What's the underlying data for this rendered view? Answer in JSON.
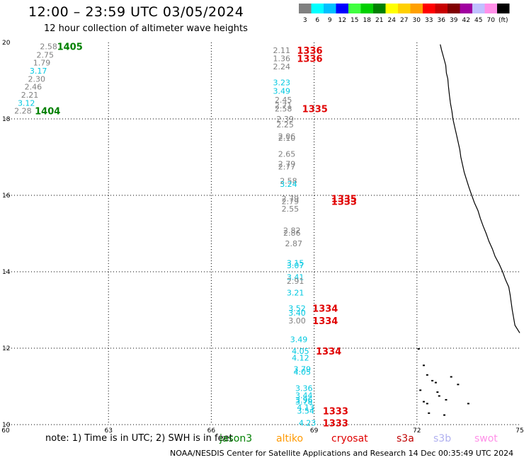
{
  "title": "12:00 – 23:59 UTC 03/05/2024",
  "subtitle": "12 hour collection of altimeter wave heights",
  "colorbar": {
    "colors": [
      "#808080",
      "#00ffff",
      "#00c0ff",
      "#0000ff",
      "#40ff40",
      "#00d000",
      "#008000",
      "#ffff00",
      "#ffd000",
      "#ffa000",
      "#ff0000",
      "#c80000",
      "#800000",
      "#a000a0",
      "#c0c0ff",
      "#ff90e8",
      "#000000"
    ],
    "labels": [
      "3",
      "6",
      "9",
      "12",
      "15",
      "18",
      "21",
      "24",
      "27",
      "30",
      "33",
      "36",
      "39",
      "42",
      "45",
      "70",
      "(ft)"
    ]
  },
  "map": {
    "lon_range": [
      60,
      75
    ],
    "lat_range": [
      10,
      20
    ],
    "lon_ticks": [
      "60",
      "63",
      "66",
      "69",
      "72",
      "75"
    ],
    "lat_ticks": [
      "20",
      "18",
      "16",
      "14",
      "12",
      "10"
    ]
  },
  "observations": [
    {
      "v": "2.58",
      "lon": 61.0,
      "lat": 19.9,
      "c": "#808080"
    },
    {
      "v": "2.75",
      "lon": 60.9,
      "lat": 19.68,
      "c": "#808080"
    },
    {
      "v": "1.79",
      "lon": 60.8,
      "lat": 19.47,
      "c": "#808080"
    },
    {
      "v": "3.17",
      "lon": 60.7,
      "lat": 19.26,
      "c": "#00c8e0"
    },
    {
      "v": "2.30",
      "lon": 60.65,
      "lat": 19.05,
      "c": "#808080"
    },
    {
      "v": "2.46",
      "lon": 60.55,
      "lat": 18.84,
      "c": "#808080"
    },
    {
      "v": "2.21",
      "lon": 60.45,
      "lat": 18.63,
      "c": "#808080"
    },
    {
      "v": "3.12",
      "lon": 60.35,
      "lat": 18.42,
      "c": "#00c8e0"
    },
    {
      "v": "2.28",
      "lon": 60.25,
      "lat": 18.21,
      "c": "#808080"
    },
    {
      "v": "2.11",
      "lon": 67.8,
      "lat": 19.8,
      "c": "#808080"
    },
    {
      "v": "1.36",
      "lon": 67.8,
      "lat": 19.58,
      "c": "#808080"
    },
    {
      "v": "2.24",
      "lon": 67.8,
      "lat": 19.37,
      "c": "#808080"
    },
    {
      "v": "3.23",
      "lon": 67.8,
      "lat": 18.95,
      "c": "#00c8e0"
    },
    {
      "v": "3.49",
      "lon": 67.8,
      "lat": 18.73,
      "c": "#00c8e0"
    },
    {
      "v": "2.45",
      "lon": 67.85,
      "lat": 18.5,
      "c": "#808080"
    },
    {
      "v": "2.71",
      "lon": 67.85,
      "lat": 18.35,
      "c": "#808080"
    },
    {
      "v": "2.58",
      "lon": 67.85,
      "lat": 18.27,
      "c": "#808080"
    },
    {
      "v": "2.39",
      "lon": 67.9,
      "lat": 18.0,
      "c": "#808080"
    },
    {
      "v": "2.25",
      "lon": 67.9,
      "lat": 17.85,
      "c": "#808080"
    },
    {
      "v": "2.06",
      "lon": 67.95,
      "lat": 17.55,
      "c": "#808080"
    },
    {
      "v": "2.10",
      "lon": 67.95,
      "lat": 17.5,
      "c": "#808080"
    },
    {
      "v": "2.65",
      "lon": 67.95,
      "lat": 17.08,
      "c": "#808080"
    },
    {
      "v": "2.79",
      "lon": 67.95,
      "lat": 16.82,
      "c": "#808080"
    },
    {
      "v": "2.77",
      "lon": 67.95,
      "lat": 16.75,
      "c": "#808080"
    },
    {
      "v": "2.58",
      "lon": 68.0,
      "lat": 16.38,
      "c": "#808080"
    },
    {
      "v": "3.24",
      "lon": 68.0,
      "lat": 16.3,
      "c": "#00c8e0"
    },
    {
      "v": "2.79",
      "lon": 68.05,
      "lat": 15.92,
      "c": "#808080"
    },
    {
      "v": "2.79",
      "lon": 68.05,
      "lat": 15.84,
      "c": "#808080"
    },
    {
      "v": "2.55",
      "lon": 68.05,
      "lat": 15.65,
      "c": "#808080"
    },
    {
      "v": "2.82",
      "lon": 68.1,
      "lat": 15.08,
      "c": "#808080"
    },
    {
      "v": "2.86",
      "lon": 68.1,
      "lat": 15.02,
      "c": "#808080"
    },
    {
      "v": "2.87",
      "lon": 68.15,
      "lat": 14.74,
      "c": "#808080"
    },
    {
      "v": "3.15",
      "lon": 68.2,
      "lat": 14.23,
      "c": "#00c8e0"
    },
    {
      "v": "3.07",
      "lon": 68.2,
      "lat": 14.17,
      "c": "#00c8e0"
    },
    {
      "v": "3.41",
      "lon": 68.2,
      "lat": 13.86,
      "c": "#00c8e0"
    },
    {
      "v": "2.91",
      "lon": 68.2,
      "lat": 13.76,
      "c": "#808080"
    },
    {
      "v": "3.21",
      "lon": 68.2,
      "lat": 13.45,
      "c": "#00c8e0"
    },
    {
      "v": "3.52",
      "lon": 68.25,
      "lat": 13.05,
      "c": "#00c8e0"
    },
    {
      "v": "3.40",
      "lon": 68.25,
      "lat": 12.93,
      "c": "#00c8e0"
    },
    {
      "v": "3.00",
      "lon": 68.25,
      "lat": 12.72,
      "c": "#808080"
    },
    {
      "v": "3.49",
      "lon": 68.3,
      "lat": 12.23,
      "c": "#00c8e0"
    },
    {
      "v": "4.05",
      "lon": 68.35,
      "lat": 11.93,
      "c": "#00c8e0"
    },
    {
      "v": "4.12",
      "lon": 68.35,
      "lat": 11.75,
      "c": "#00c8e0"
    },
    {
      "v": "3.79",
      "lon": 68.4,
      "lat": 11.45,
      "c": "#00c8e0"
    },
    {
      "v": "4.05",
      "lon": 68.4,
      "lat": 11.38,
      "c": "#00c8e0"
    },
    {
      "v": "3.36",
      "lon": 68.45,
      "lat": 10.95,
      "c": "#00c8e0"
    },
    {
      "v": "3.44",
      "lon": 68.45,
      "lat": 10.77,
      "c": "#00c8e0"
    },
    {
      "v": "3.96",
      "lon": 68.45,
      "lat": 10.65,
      "c": "#00c8e0"
    },
    {
      "v": "3.78",
      "lon": 68.45,
      "lat": 10.6,
      "c": "#00c8e0"
    },
    {
      "v": "4.13",
      "lon": 68.5,
      "lat": 10.45,
      "c": "#00c8e0"
    },
    {
      "v": "3.54",
      "lon": 68.5,
      "lat": 10.36,
      "c": "#00c8e0"
    },
    {
      "v": "4.23",
      "lon": 68.55,
      "lat": 10.05,
      "c": "#00c8e0"
    }
  ],
  "pass_labels": [
    {
      "t": "1405",
      "lon": 61.5,
      "lat": 19.9,
      "c": "#008000"
    },
    {
      "t": "1404",
      "lon": 60.85,
      "lat": 18.21,
      "c": "#008000"
    },
    {
      "t": "1336",
      "lon": 68.5,
      "lat": 19.8,
      "c": "#e00000"
    },
    {
      "t": "1336",
      "lon": 68.5,
      "lat": 19.58,
      "c": "#e00000"
    },
    {
      "t": "1335",
      "lon": 68.65,
      "lat": 18.27,
      "c": "#e00000"
    },
    {
      "t": "1335",
      "lon": 69.5,
      "lat": 15.92,
      "c": "#e00000"
    },
    {
      "t": "1333",
      "lon": 69.5,
      "lat": 15.84,
      "c": "#e00000"
    },
    {
      "t": "1334",
      "lon": 68.95,
      "lat": 13.05,
      "c": "#e00000"
    },
    {
      "t": "1334",
      "lon": 68.95,
      "lat": 12.72,
      "c": "#e00000"
    },
    {
      "t": "1334",
      "lon": 69.05,
      "lat": 11.93,
      "c": "#e00000"
    },
    {
      "t": "1333",
      "lon": 69.25,
      "lat": 10.36,
      "c": "#e00000"
    },
    {
      "t": "1333",
      "lon": 69.25,
      "lat": 10.05,
      "c": "#e00000"
    }
  ],
  "coastline": [
    [
      72.68,
      19.95
    ],
    [
      72.72,
      19.8
    ],
    [
      72.78,
      19.6
    ],
    [
      72.84,
      19.4
    ],
    [
      72.86,
      19.2
    ],
    [
      72.9,
      19.05
    ],
    [
      72.92,
      18.85
    ],
    [
      72.95,
      18.6
    ],
    [
      72.98,
      18.4
    ],
    [
      73.02,
      18.2
    ],
    [
      73.05,
      18.0
    ],
    [
      73.1,
      17.8
    ],
    [
      73.15,
      17.6
    ],
    [
      73.2,
      17.4
    ],
    [
      73.25,
      17.2
    ],
    [
      73.28,
      17.0
    ],
    [
      73.33,
      16.8
    ],
    [
      73.38,
      16.6
    ],
    [
      73.45,
      16.4
    ],
    [
      73.52,
      16.2
    ],
    [
      73.6,
      16.0
    ],
    [
      73.68,
      15.8
    ],
    [
      73.78,
      15.6
    ],
    [
      73.85,
      15.4
    ],
    [
      73.93,
      15.2
    ],
    [
      74.02,
      15.0
    ],
    [
      74.1,
      14.8
    ],
    [
      74.2,
      14.6
    ],
    [
      74.28,
      14.4
    ],
    [
      74.4,
      14.2
    ],
    [
      74.5,
      14.0
    ],
    [
      74.58,
      13.8
    ],
    [
      74.68,
      13.6
    ],
    [
      74.72,
      13.4
    ],
    [
      74.75,
      13.2
    ],
    [
      74.78,
      13.0
    ],
    [
      74.82,
      12.8
    ],
    [
      74.86,
      12.6
    ],
    [
      75.0,
      12.4
    ]
  ],
  "islands": [
    [
      72.05,
      11.98
    ],
    [
      72.2,
      11.55
    ],
    [
      72.3,
      11.3
    ],
    [
      72.45,
      11.15
    ],
    [
      72.55,
      11.1
    ],
    [
      72.6,
      10.85
    ],
    [
      72.65,
      10.75
    ],
    [
      72.1,
      10.9
    ],
    [
      72.2,
      10.6
    ],
    [
      72.3,
      10.55
    ],
    [
      72.35,
      10.3
    ],
    [
      72.8,
      10.25
    ],
    [
      72.85,
      10.65
    ],
    [
      73.5,
      10.55
    ],
    [
      73.2,
      11.05
    ],
    [
      73.0,
      11.25
    ]
  ],
  "note": "note:  1) Time is in UTC; 2) SWH is in feet",
  "legend": [
    {
      "t": "jason3",
      "c": "#008000"
    },
    {
      "t": "altiko",
      "c": "#ff9900"
    },
    {
      "t": "cryosat",
      "c": "#e00000"
    },
    {
      "t": "s3a",
      "c": "#c00000"
    },
    {
      "t": "s3b",
      "c": "#b0b0f0"
    },
    {
      "t": "swot",
      "c": "#ff90e8"
    }
  ],
  "credit": "NOAA/NESDIS Center for Satellite Applications and Research    14 Dec 00:35:49 UTC 2024"
}
